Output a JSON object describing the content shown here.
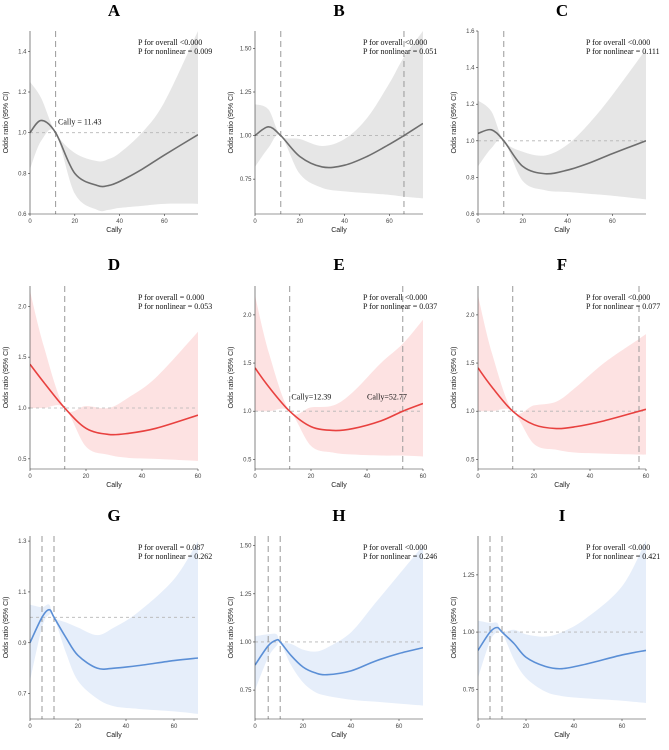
{
  "chart_data": [
    {
      "type": "line",
      "label": "A",
      "xlabel": "Cally",
      "ylabel": "Odds ratio (95% CI)",
      "xlim": [
        0,
        75
      ],
      "ylim": [
        0.6,
        1.5
      ],
      "xticks": [
        0,
        20,
        40,
        60
      ],
      "xtick_labels": [
        "0",
        "20",
        "40",
        "60"
      ],
      "yticks": [
        0.6,
        0.8,
        1.0,
        1.2,
        1.4
      ],
      "ytick_labels": [
        "0.6",
        "0.8",
        "1.0",
        "1.2",
        "1.4"
      ],
      "ref_y": 1.0,
      "vlines": [
        11.43
      ],
      "annotations": [
        "P for overall <0.000",
        "P for nonlinear = 0.009"
      ],
      "inline_labels": [
        {
          "text": "Cally = 11.43",
          "x": 12.5,
          "y": 1.04
        }
      ],
      "series": [
        {
          "color": "#6e6e6e",
          "band": "#e6e6e6",
          "x": [
            0,
            5,
            11.43,
            20,
            30,
            35,
            40,
            50,
            60,
            75
          ],
          "y": [
            1.0,
            1.06,
            1.0,
            0.8,
            0.74,
            0.74,
            0.76,
            0.82,
            0.89,
            0.99
          ],
          "lower": [
            0.82,
            0.96,
            1.0,
            0.7,
            0.62,
            0.62,
            0.63,
            0.64,
            0.65,
            0.65
          ],
          "upper": [
            1.25,
            1.17,
            1.0,
            0.9,
            0.86,
            0.87,
            0.9,
            1.0,
            1.15,
            1.5
          ]
        }
      ]
    },
    {
      "type": "line",
      "label": "B",
      "xlabel": "Cally",
      "ylabel": "Odds ratio (95% CI)",
      "xlim": [
        0,
        75
      ],
      "ylim": [
        0.55,
        1.6
      ],
      "xticks": [
        0,
        20,
        40,
        60
      ],
      "xtick_labels": [
        "0",
        "20",
        "40",
        "60"
      ],
      "yticks": [
        0.75,
        1.0,
        1.25,
        1.5
      ],
      "ytick_labels": [
        "0.75",
        "1.00",
        "1.25",
        "1.50"
      ],
      "ref_y": 1.0,
      "vlines": [
        11.5,
        66.5
      ],
      "annotations": [
        "P for overall <0.000",
        "P for nonlinear = 0.051"
      ],
      "inline_labels": [],
      "series": [
        {
          "color": "#6e6e6e",
          "band": "#e6e6e6",
          "x": [
            0,
            6,
            11.5,
            20,
            30,
            40,
            50,
            60,
            66.5,
            75
          ],
          "y": [
            1.0,
            1.05,
            1.0,
            0.88,
            0.82,
            0.83,
            0.88,
            0.95,
            1.0,
            1.07
          ],
          "lower": [
            0.82,
            0.93,
            1.0,
            0.78,
            0.7,
            0.68,
            0.67,
            0.66,
            0.65,
            0.64
          ],
          "upper": [
            1.18,
            1.15,
            1.0,
            0.98,
            0.94,
            0.98,
            1.1,
            1.3,
            1.45,
            1.6
          ]
        }
      ]
    },
    {
      "type": "line",
      "label": "C",
      "xlabel": "Cally",
      "ylabel": "Odds ratio (95% CI)",
      "xlim": [
        0,
        75
      ],
      "ylim": [
        0.6,
        1.6
      ],
      "xticks": [
        0,
        20,
        40,
        60
      ],
      "xtick_labels": [
        "0",
        "20",
        "40",
        "60"
      ],
      "yticks": [
        0.6,
        0.8,
        1.0,
        1.2,
        1.4,
        1.6
      ],
      "ytick_labels": [
        "0.6",
        "0.8",
        "1.0",
        "1.2",
        "1.4",
        "1.6"
      ],
      "ref_y": 1.0,
      "vlines": [
        11.5
      ],
      "annotations": [
        "P for overall <0.000",
        "P for nonlinear = 0.111"
      ],
      "inline_labels": [],
      "series": [
        {
          "color": "#6e6e6e",
          "band": "#e6e6e6",
          "x": [
            0,
            6,
            11.5,
            20,
            30,
            40,
            50,
            60,
            75
          ],
          "y": [
            1.04,
            1.06,
            1.0,
            0.86,
            0.82,
            0.84,
            0.88,
            0.93,
            1.0
          ],
          "lower": [
            0.86,
            0.96,
            1.0,
            0.78,
            0.73,
            0.72,
            0.71,
            0.7,
            0.68
          ],
          "upper": [
            1.22,
            1.16,
            1.0,
            0.94,
            0.92,
            0.98,
            1.1,
            1.25,
            1.5
          ]
        }
      ]
    },
    {
      "type": "line",
      "label": "D",
      "xlabel": "Cally",
      "ylabel": "Odds ratio (95% CI)",
      "xlim": [
        0,
        60
      ],
      "ylim": [
        0.4,
        2.2
      ],
      "xticks": [
        0,
        20,
        40,
        60
      ],
      "xtick_labels": [
        "0",
        "20",
        "40",
        "60"
      ],
      "yticks": [
        0.5,
        1.0,
        1.5,
        2.0
      ],
      "ytick_labels": [
        "0.5",
        "1.0",
        "1.5",
        "2.0"
      ],
      "ref_y": 1.0,
      "vlines": [
        12.4
      ],
      "annotations": [
        "P for overall = 0.000",
        "P for nonlinear = 0.053"
      ],
      "inline_labels": [],
      "series": [
        {
          "color": "#e8413f",
          "band": "#fde2e2",
          "x": [
            0,
            5,
            12.4,
            20,
            28,
            35,
            45,
            60
          ],
          "y": [
            1.43,
            1.25,
            1.0,
            0.8,
            0.74,
            0.75,
            0.8,
            0.93
          ],
          "lower": [
            1.0,
            1.0,
            1.0,
            0.62,
            0.54,
            0.51,
            0.5,
            0.48
          ],
          "upper": [
            2.15,
            1.6,
            1.0,
            1.02,
            1.0,
            1.1,
            1.3,
            1.75
          ]
        }
      ]
    },
    {
      "type": "line",
      "label": "E",
      "xlabel": "Cally",
      "ylabel": "Odds ratio (95% CI)",
      "xlim": [
        0,
        60
      ],
      "ylim": [
        0.4,
        2.3
      ],
      "xticks": [
        0,
        20,
        40,
        60
      ],
      "xtick_labels": [
        "0",
        "20",
        "40",
        "60"
      ],
      "yticks": [
        0.5,
        1.0,
        1.5,
        2.0
      ],
      "ytick_labels": [
        "0.5",
        "1.0",
        "1.5",
        "2.0"
      ],
      "ref_y": 1.0,
      "vlines": [
        12.39,
        52.77
      ],
      "annotations": [
        "P for overall <0.000",
        "P for nonlinear = 0.037"
      ],
      "inline_labels": [
        {
          "text": "Cally=12.39",
          "x": 13,
          "y": 1.12
        },
        {
          "text": "Cally=52.77",
          "x": 40,
          "y": 1.12
        }
      ],
      "series": [
        {
          "color": "#e8413f",
          "band": "#fde2e2",
          "x": [
            0,
            5,
            12.39,
            20,
            28,
            35,
            45,
            52.77,
            60
          ],
          "y": [
            1.45,
            1.25,
            1.0,
            0.84,
            0.8,
            0.82,
            0.9,
            1.0,
            1.08
          ],
          "lower": [
            1.0,
            1.0,
            1.0,
            0.64,
            0.57,
            0.55,
            0.54,
            0.54,
            0.53
          ],
          "upper": [
            2.2,
            1.6,
            1.0,
            1.04,
            1.06,
            1.2,
            1.5,
            1.7,
            1.95
          ]
        }
      ]
    },
    {
      "type": "line",
      "label": "F",
      "xlabel": "Cally",
      "ylabel": "Odds ratio (95% CI)",
      "xlim": [
        0,
        60
      ],
      "ylim": [
        0.4,
        2.3
      ],
      "xticks": [
        0,
        20,
        40,
        60
      ],
      "xtick_labels": [
        "0",
        "20",
        "40",
        "60"
      ],
      "yticks": [
        0.5,
        1.0,
        1.5,
        2.0
      ],
      "ytick_labels": [
        "0.5",
        "1.0",
        "1.5",
        "2.0"
      ],
      "ref_y": 1.0,
      "vlines": [
        12.4,
        57.5
      ],
      "annotations": [
        "P for overall <0.000",
        "P for nonlinear = 0.077"
      ],
      "inline_labels": [],
      "series": [
        {
          "color": "#e8413f",
          "band": "#fde2e2",
          "x": [
            0,
            5,
            12.4,
            20,
            28,
            35,
            45,
            57.5,
            60
          ],
          "y": [
            1.45,
            1.25,
            1.0,
            0.86,
            0.82,
            0.84,
            0.9,
            1.0,
            1.02
          ],
          "lower": [
            1.0,
            1.0,
            1.0,
            0.66,
            0.6,
            0.57,
            0.56,
            0.55,
            0.55
          ],
          "upper": [
            2.2,
            1.6,
            1.0,
            1.06,
            1.1,
            1.25,
            1.5,
            1.75,
            1.8
          ]
        }
      ]
    },
    {
      "type": "line",
      "label": "G",
      "xlabel": "Cally",
      "ylabel": "Odds ratio (95% CI)",
      "xlim": [
        0,
        70
      ],
      "ylim": [
        0.6,
        1.32
      ],
      "xticks": [
        0,
        20,
        40,
        60
      ],
      "xtick_labels": [
        "0",
        "20",
        "40",
        "60"
      ],
      "yticks": [
        0.7,
        0.9,
        1.1,
        1.3
      ],
      "ytick_labels": [
        "0.7",
        "0.9",
        "1.1",
        "1.3"
      ],
      "ref_y": 1.0,
      "vlines": [
        5,
        10
      ],
      "annotations": [
        "P for overall = 0.087",
        "P for nonlinear = 0.262"
      ],
      "inline_labels": [],
      "series": [
        {
          "color": "#5b8fd6",
          "band": "#e6eefa",
          "x": [
            0,
            5,
            8,
            10,
            15,
            20,
            28,
            35,
            45,
            60,
            70
          ],
          "y": [
            0.9,
            1.0,
            1.03,
            1.0,
            0.92,
            0.85,
            0.8,
            0.8,
            0.81,
            0.83,
            0.84
          ],
          "lower": [
            0.75,
            0.96,
            1.01,
            1.0,
            0.86,
            0.75,
            0.68,
            0.65,
            0.64,
            0.63,
            0.62
          ],
          "upper": [
            1.05,
            1.04,
            1.05,
            1.0,
            0.98,
            0.96,
            0.93,
            0.96,
            1.02,
            1.15,
            1.3
          ]
        }
      ]
    },
    {
      "type": "line",
      "label": "H",
      "xlabel": "Cally",
      "ylabel": "Odds ratio (95% CI)",
      "xlim": [
        0,
        70
      ],
      "ylim": [
        0.6,
        1.55
      ],
      "xticks": [
        0,
        20,
        40,
        60
      ],
      "xtick_labels": [
        "0",
        "20",
        "40",
        "60"
      ],
      "yticks": [
        0.75,
        1.0,
        1.25,
        1.5
      ],
      "ytick_labels": [
        "0.75",
        "1.00",
        "1.25",
        "1.50"
      ],
      "ref_y": 1.0,
      "vlines": [
        5.5,
        10.5
      ],
      "annotations": [
        "P for overall <0.000",
        "P for nonlinear = 0.246"
      ],
      "inline_labels": [],
      "series": [
        {
          "color": "#5b8fd6",
          "band": "#e6eefa",
          "x": [
            0,
            5.5,
            9,
            10.5,
            15,
            20,
            25,
            30,
            40,
            50,
            60,
            70
          ],
          "y": [
            0.88,
            0.98,
            1.01,
            1.0,
            0.93,
            0.87,
            0.84,
            0.83,
            0.85,
            0.9,
            0.94,
            0.97
          ],
          "lower": [
            0.75,
            0.92,
            0.98,
            1.0,
            0.88,
            0.79,
            0.74,
            0.72,
            0.7,
            0.69,
            0.68,
            0.67
          ],
          "upper": [
            1.03,
            1.04,
            1.04,
            1.0,
            0.99,
            0.96,
            0.95,
            0.97,
            1.05,
            1.2,
            1.35,
            1.5
          ]
        }
      ]
    },
    {
      "type": "line",
      "label": "I",
      "xlabel": "Cally",
      "ylabel": "Odds ratio (95% CI)",
      "xlim": [
        0,
        70
      ],
      "ylim": [
        0.62,
        1.42
      ],
      "xticks": [
        0,
        20,
        40,
        60
      ],
      "xtick_labels": [
        "0",
        "20",
        "40",
        "60"
      ],
      "yticks": [
        0.75,
        1.0,
        1.25
      ],
      "ytick_labels": [
        "0.75",
        "1.00",
        "1.25"
      ],
      "ref_y": 1.0,
      "vlines": [
        5,
        10
      ],
      "annotations": [
        "P for overall <0.000",
        "P for nonlinear = 0.421"
      ],
      "inline_labels": [],
      "series": [
        {
          "color": "#5b8fd6",
          "band": "#e6eefa",
          "x": [
            0,
            5,
            8,
            10,
            15,
            20,
            28,
            35,
            45,
            60,
            70
          ],
          "y": [
            0.92,
            1.0,
            1.02,
            1.0,
            0.95,
            0.89,
            0.85,
            0.84,
            0.86,
            0.9,
            0.92
          ],
          "lower": [
            0.8,
            0.96,
            1.0,
            1.0,
            0.88,
            0.8,
            0.74,
            0.72,
            0.71,
            0.7,
            0.69
          ],
          "upper": [
            1.05,
            1.04,
            1.04,
            1.0,
            1.01,
            0.99,
            0.98,
            1.0,
            1.06,
            1.2,
            1.4
          ]
        }
      ]
    }
  ]
}
